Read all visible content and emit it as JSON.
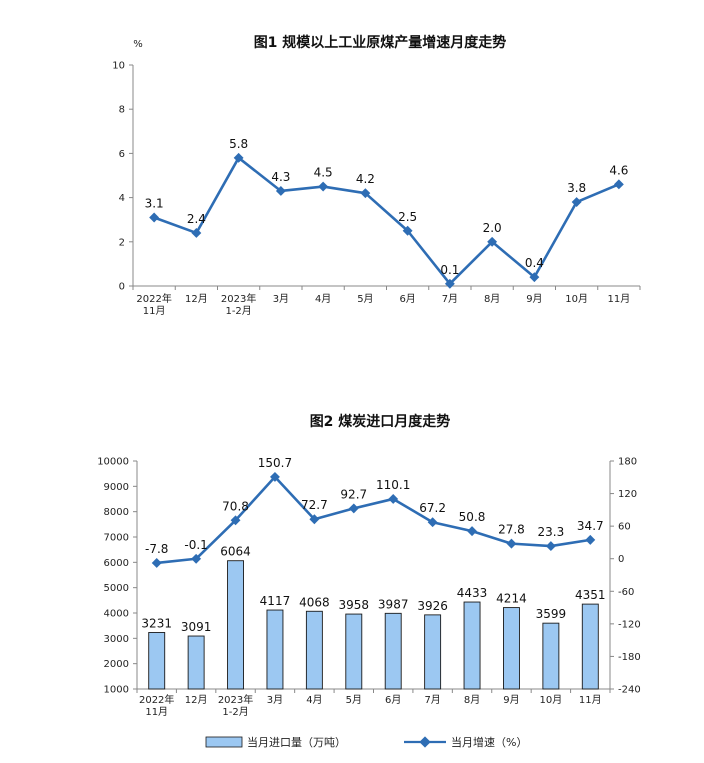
{
  "chart_data": [
    {
      "type": "line",
      "title": "图1  规模以上工业原煤产量增速月度走势",
      "ylabel": "%",
      "ylim": [
        0,
        10
      ],
      "yticks": [
        "0",
        "2",
        "4",
        "6",
        "8",
        "10"
      ],
      "categories": [
        [
          "2022年",
          "11月"
        ],
        [
          "12月"
        ],
        [
          "2023年",
          "1-2月"
        ],
        [
          "3月"
        ],
        [
          "4月"
        ],
        [
          "5月"
        ],
        [
          "6月"
        ],
        [
          "7月"
        ],
        [
          "8月"
        ],
        [
          "9月"
        ],
        [
          "10月"
        ],
        [
          "11月"
        ]
      ],
      "values": [
        3.1,
        2.4,
        5.8,
        4.3,
        4.5,
        4.2,
        2.5,
        0.1,
        2.0,
        0.4,
        3.8,
        4.6
      ],
      "value_labels": [
        "3.1",
        "2.4",
        "5.8",
        "4.3",
        "4.5",
        "4.2",
        "2.5",
        "0.1",
        "2.0",
        "0.4",
        "3.8",
        "4.6"
      ],
      "line_color": "#2e6db4"
    },
    {
      "type": "bar+line",
      "title": "图2  煤炭进口月度走势",
      "categories": [
        [
          "2022年",
          "11月"
        ],
        [
          "12月"
        ],
        [
          "2023年",
          "1-2月"
        ],
        [
          "3月"
        ],
        [
          "4月"
        ],
        [
          "5月"
        ],
        [
          "6月"
        ],
        [
          "7月"
        ],
        [
          "8月"
        ],
        [
          "9月"
        ],
        [
          "10月"
        ],
        [
          "11月"
        ]
      ],
      "left_ylim": [
        1000,
        10000
      ],
      "left_yticks": [
        "1000",
        "2000",
        "3000",
        "4000",
        "5000",
        "6000",
        "7000",
        "8000",
        "9000",
        "10000"
      ],
      "right_ylim": [
        -240,
        180
      ],
      "right_yticks": [
        "-240",
        "-180",
        "-120",
        "-60",
        "0",
        "60",
        "120",
        "180"
      ],
      "bar_values": [
        3231,
        3091,
        6064,
        4117,
        4068,
        3958,
        3987,
        3926,
        4433,
        4214,
        3599,
        4351
      ],
      "bar_labels": [
        "3231",
        "3091",
        "6064",
        "4117",
        "4068",
        "3958",
        "3987",
        "3926",
        "4433",
        "4214",
        "3599",
        "4351"
      ],
      "line_values": [
        -7.8,
        -0.1,
        70.8,
        150.7,
        72.7,
        92.7,
        110.1,
        67.2,
        50.8,
        27.8,
        23.3,
        34.7
      ],
      "line_labels": [
        "-7.8",
        "-0.1",
        "70.8",
        "150.7",
        "72.7",
        "92.7",
        "110.1",
        "67.2",
        "50.8",
        "27.8",
        "23.3",
        "34.7"
      ],
      "legend": {
        "bar": "当月进口量（万吨）",
        "line": "当月增速（%）"
      },
      "bar_color": "#9cc8f2",
      "bar_stroke": "#1a1a1a",
      "line_color": "#2e6db4"
    }
  ]
}
